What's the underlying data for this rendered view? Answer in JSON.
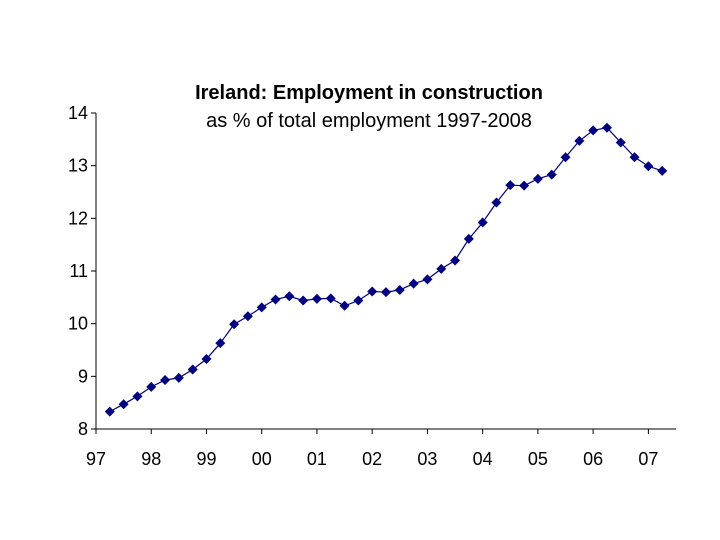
{
  "chart_data": {
    "type": "line",
    "title": "Ireland: Employment in construction",
    "subtitle": "as % of total employment 1997-2008",
    "xlabel": "",
    "ylabel": "",
    "ylim": [
      8,
      14
    ],
    "yticks": [
      "8",
      "9",
      "10",
      "11",
      "12",
      "13",
      "14"
    ],
    "xticks": [
      "97",
      "98",
      "99",
      "00",
      "01",
      "02",
      "03",
      "04",
      "05",
      "06",
      "07"
    ],
    "x_range_years": [
      1997,
      2007.5
    ],
    "series": [
      {
        "name": "Employment in construction (% of total)",
        "x": [
          1997.25,
          1997.5,
          1997.75,
          1998.0,
          1998.25,
          1998.5,
          1998.75,
          1999.0,
          1999.25,
          1999.5,
          1999.75,
          2000.0,
          2000.25,
          2000.5,
          2000.75,
          2001.0,
          2001.25,
          2001.5,
          2001.75,
          2002.0,
          2002.25,
          2002.5,
          2002.75,
          2003.0,
          2003.25,
          2003.5,
          2003.75,
          2004.0,
          2004.25,
          2004.5,
          2004.75,
          2005.0,
          2005.25,
          2005.5,
          2005.75,
          2006.0,
          2006.25,
          2006.5,
          2006.75,
          2007.0,
          2007.25
        ],
        "values": [
          8.33,
          8.47,
          8.62,
          8.8,
          8.93,
          8.97,
          9.13,
          9.33,
          9.63,
          9.99,
          10.14,
          10.31,
          10.46,
          10.52,
          10.44,
          10.47,
          10.48,
          10.34,
          10.44,
          10.61,
          10.6,
          10.64,
          10.76,
          10.84,
          11.04,
          11.2,
          11.61,
          11.92,
          12.3,
          12.63,
          12.62,
          12.75,
          12.83,
          13.16,
          13.47,
          13.67,
          13.72,
          13.44,
          13.16,
          12.99,
          12.9
        ]
      }
    ]
  }
}
